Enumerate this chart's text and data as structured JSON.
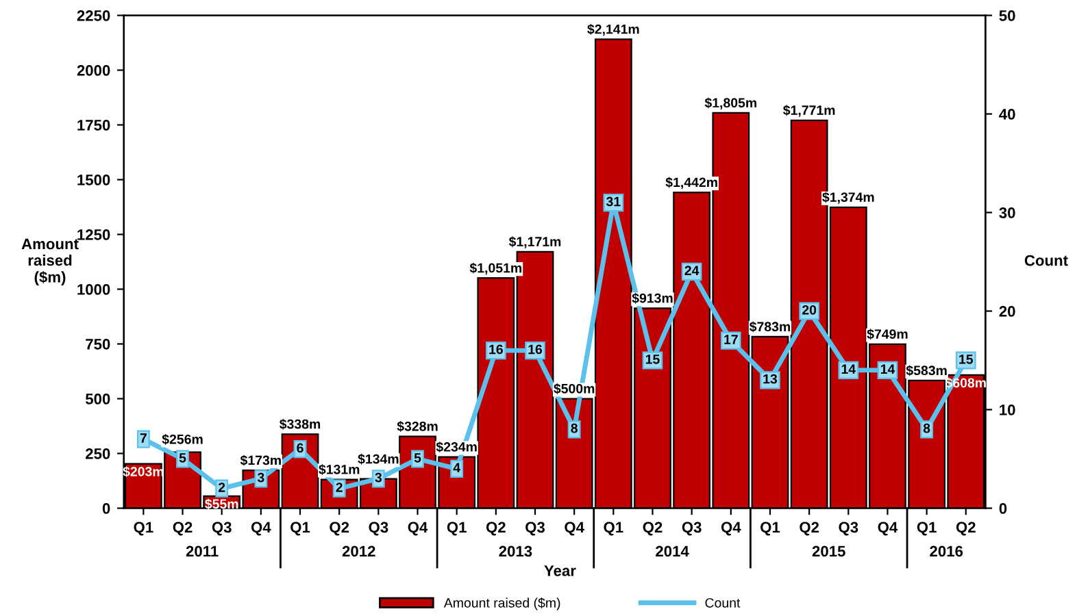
{
  "chart_data": {
    "type": "bar",
    "categories": [
      "Q1",
      "Q2",
      "Q3",
      "Q4",
      "Q1",
      "Q2",
      "Q3",
      "Q4",
      "Q1",
      "Q2",
      "Q3",
      "Q4",
      "Q1",
      "Q2",
      "Q3",
      "Q4",
      "Q1",
      "Q2",
      "Q3",
      "Q4",
      "Q1",
      "Q2"
    ],
    "xlabel": "Year",
    "ylabel": "Amount raised ($m)",
    "y2label": "Count",
    "annotations": [
      "2011",
      "2012",
      "2013",
      "2014",
      "2015",
      "2016"
    ],
    "series": [
      {
        "name": "Amount raised ($m)",
        "color": "#c00000",
        "values": [
          203,
          256,
          55,
          173,
          338,
          131,
          134,
          328,
          234,
          1051,
          1171,
          500,
          2141,
          913,
          1442,
          1805,
          783,
          1771,
          1374,
          749,
          583,
          608
        ],
        "value_labels": [
          "$203m",
          "$256m",
          "$55m",
          "$173m",
          "$338m",
          "$131m",
          "$134m",
          "$328m",
          "$234m",
          "$1,051m",
          "$1,171m",
          "$500m",
          "$2,141m",
          "$913m",
          "$1,442m",
          "$1,805m",
          "$783m",
          "$1,771m",
          "$1,374m",
          "$749m",
          "$583m",
          "$608m"
        ]
      },
      {
        "name": "Count",
        "type": "line",
        "axis": "y2",
        "color": "#5bc0eb",
        "marker": "square",
        "values": [
          7,
          5,
          2,
          3,
          6,
          2,
          3,
          5,
          4,
          16,
          16,
          8,
          31,
          15,
          24,
          17,
          13,
          20,
          14,
          14,
          8,
          15
        ],
        "value_labels": [
          "7",
          "5",
          "2",
          "3",
          "6",
          "2",
          "3",
          "5",
          "4",
          "16",
          "16",
          "8",
          "31",
          "15",
          "24",
          "17",
          "13",
          "20",
          "14",
          "14",
          "8",
          "15"
        ]
      }
    ],
    "ylim": [
      0,
      2250
    ],
    "yticks": [
      0,
      250,
      500,
      750,
      1000,
      1250,
      1500,
      1750,
      2000,
      2250
    ],
    "y2lim": [
      0,
      50
    ],
    "y2ticks": [
      0,
      10,
      20,
      30,
      40,
      50
    ],
    "grid": false,
    "legend": "bottom"
  }
}
